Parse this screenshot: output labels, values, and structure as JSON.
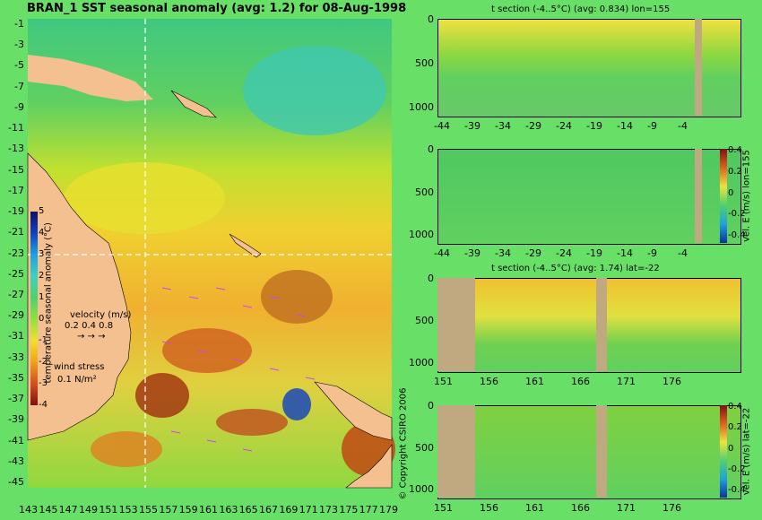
{
  "title": "BRAN_1  SST seasonal anomaly  (avg: 1.2)  for 08-Aug-1998",
  "copyright": "© Copyright CSIRO 2006",
  "colors": {
    "page_bg": "#68e068",
    "land": "#f4c090",
    "section_land": "#c0a880",
    "dashed_line": "#ffffff",
    "vector": "#cc44ff"
  },
  "map": {
    "lat_labels": [
      "-1",
      "-3",
      "-5",
      "-7",
      "-9",
      "-11",
      "-13",
      "-15",
      "-17",
      "-19",
      "-21",
      "-23",
      "-25",
      "-27",
      "-29",
      "-31",
      "-33",
      "-35",
      "-37",
      "-39",
      "-41",
      "-43",
      "-45"
    ],
    "lon_labels": [
      "143",
      "145",
      "147",
      "149",
      "151",
      "153",
      "155",
      "157",
      "159",
      "161",
      "163",
      "165",
      "167",
      "169",
      "171",
      "173",
      "175",
      "177",
      "179"
    ],
    "colorbar": {
      "label": "temperature seasonal anomaly (°C)",
      "ticks": [
        "5",
        "4",
        "3",
        "2",
        "1",
        "0",
        "-1",
        "-2",
        "-3",
        "-4"
      ],
      "colors": [
        "#101060",
        "#1040c0",
        "#20a0e0",
        "#40d0c0",
        "#50d070",
        "#90e040",
        "#f0e030",
        "#f0a020",
        "#d05020",
        "#801010"
      ]
    },
    "velocity_legend": {
      "title": "velocity (m/s)",
      "scale": "0.2 0.4 0.8"
    },
    "wind_legend": {
      "title": "wind stress",
      "scale": "0.1 N/m²"
    }
  },
  "chart_data": [
    {
      "type": "heatmap",
      "title": "BRAN_1 SST seasonal anomaly (avg: 1.2) for 08-Aug-1998",
      "xlabel": "",
      "ylabel": "",
      "xlim": [
        143,
        180
      ],
      "ylim": [
        -45,
        0
      ],
      "colorbar_range": [
        -4,
        5
      ],
      "colorbar_label": "temperature seasonal anomaly (°C)",
      "average": 1.2
    },
    {
      "type": "heatmap",
      "title": "t section (-4..5°C) (avg: 0.834) lon=155",
      "x_ticks": [
        "-44",
        "-39",
        "-34",
        "-29",
        "-24",
        "-19",
        "-14",
        "-9",
        "-4"
      ],
      "y_ticks": [
        "0",
        "500",
        "1000"
      ],
      "xlim": [
        -45,
        -1
      ],
      "ylim": [
        1050,
        0
      ],
      "average": 0.834
    },
    {
      "type": "heatmap",
      "title": "",
      "side_label": "vel. E (m/s) lon=155",
      "x_ticks": [
        "-44",
        "-39",
        "-34",
        "-29",
        "-24",
        "-19",
        "-14",
        "-9",
        "-4"
      ],
      "y_ticks": [
        "0",
        "500",
        "1000"
      ],
      "xlim": [
        -45,
        -1
      ],
      "ylim": [
        1050,
        0
      ],
      "colorbar_ticks": [
        "0.4",
        "0.2",
        "0",
        "-0.2",
        "-0.4"
      ]
    },
    {
      "type": "heatmap",
      "title": "t section (-4..5°C) (avg: 1.74) lat=-22",
      "x_ticks": [
        "151",
        "156",
        "161",
        "166",
        "171",
        "176"
      ],
      "y_ticks": [
        "0",
        "500",
        "1000"
      ],
      "xlim": [
        150,
        180
      ],
      "ylim": [
        1050,
        0
      ],
      "average": 1.74
    },
    {
      "type": "heatmap",
      "title": "",
      "side_label": "vel. E (m/s) lat=-22",
      "x_ticks": [
        "151",
        "156",
        "161",
        "166",
        "171",
        "176"
      ],
      "y_ticks": [
        "0",
        "500",
        "1000"
      ],
      "xlim": [
        150,
        180
      ],
      "ylim": [
        1050,
        0
      ],
      "colorbar_ticks": [
        "0.4",
        "0.2",
        "0",
        "-0.2",
        "-0.4"
      ]
    }
  ]
}
